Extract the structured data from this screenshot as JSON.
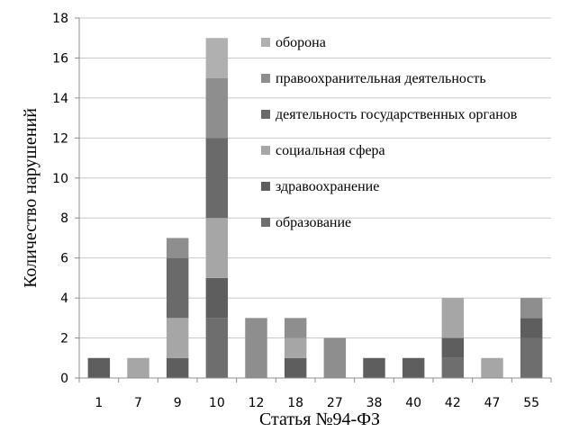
{
  "chart_data": {
    "type": "bar",
    "stacked": true,
    "xlabel": "Статья №94-ФЗ",
    "ylabel": "Количество нарушений",
    "ylim": [
      0,
      18
    ],
    "yticks": [
      0,
      2,
      4,
      6,
      8,
      10,
      12,
      14,
      16,
      18
    ],
    "grid": "horizontal",
    "legend_position": "top-right",
    "categories": [
      "1",
      "7",
      "9",
      "10",
      "12",
      "18",
      "27",
      "38",
      "40",
      "42",
      "47",
      "55"
    ],
    "series": [
      {
        "name": "образование",
        "color": "#6e6e6e",
        "values": [
          0,
          0,
          0,
          3,
          0,
          0,
          0,
          0,
          0,
          1,
          0,
          2
        ]
      },
      {
        "name": "здравоохранение",
        "color": "#5e5e5e",
        "values": [
          1,
          0,
          1,
          2,
          0,
          1,
          0,
          1,
          1,
          1,
          0,
          1
        ]
      },
      {
        "name": "социальная сфера",
        "color": "#a6a6a6",
        "values": [
          0,
          1,
          2,
          3,
          0,
          1,
          0,
          0,
          0,
          2,
          1,
          0
        ]
      },
      {
        "name": "деятельность государственных органов",
        "color": "#6a6a6a",
        "values": [
          0,
          0,
          3,
          4,
          0,
          0,
          0,
          0,
          0,
          0,
          0,
          0
        ]
      },
      {
        "name": "правоохранительная деятельность",
        "color": "#8e8e8e",
        "values": [
          0,
          0,
          1,
          3,
          3,
          1,
          2,
          0,
          0,
          0,
          0,
          1
        ]
      },
      {
        "name": "оборона",
        "color": "#b0b0b0",
        "values": [
          0,
          0,
          0,
          2,
          0,
          0,
          0,
          0,
          0,
          0,
          0,
          0
        ]
      }
    ]
  }
}
